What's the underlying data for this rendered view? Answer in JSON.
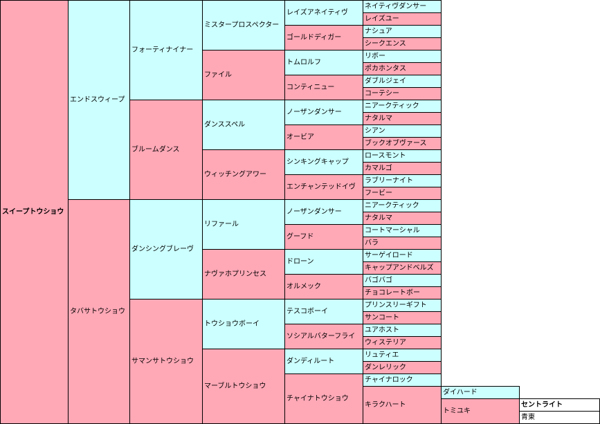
{
  "pedigree": {
    "g1": [
      "スイープトウショウ"
    ],
    "g2": [
      "エンドスウィープ",
      "タバサトウショウ"
    ],
    "g3": [
      "フォーティナイナー",
      "ブルームダンス",
      "ダンシングブレーヴ",
      "サマンサトウショウ"
    ],
    "g4": [
      "ミスタープロスペクター",
      "ファイル",
      "ダンススペル",
      "ウィッチングアワー",
      "リファール",
      "ナヴァホプリンセス",
      "トウショウボーイ",
      "マーブルトウショウ"
    ],
    "g5": [
      "レイズアネイティヴ",
      "ゴールドディガー",
      "トムロルフ",
      "コンティニュー",
      "ノーザンダンサー",
      "オービア",
      "シンキングキャップ",
      "エンチャンテッドイヴ",
      "ノーザンダンサー",
      "グーフド",
      "ドローン",
      "オルメック",
      "テスコボーイ",
      "ソシアルバターフライ",
      "ダンディルート",
      "チャイナトウショウ"
    ],
    "g6": [
      "ネイティヴダンサー",
      "レイズユー",
      "ナシュア",
      "シークエンス",
      "リボー",
      "ポカホンタス",
      "ダブルジェイ",
      "コーテシー",
      "ニアークティック",
      "ナタルマ",
      "シアン",
      "ブックオブヴァース",
      "ロースモント",
      "カマルゴ",
      "ラブリーナイト",
      "フービー",
      "ニアークティック",
      "ナタルマ",
      "コートマーシャル",
      "バラ",
      "サーゲイロード",
      "キャップアンドベルズ",
      "バゴバゴ",
      "チョコレートボー",
      "プリンスリーギフト",
      "サンコート",
      "ユアホスト",
      "ウィステリア",
      "リュティエ",
      "ダンレリック",
      "チャイナロック",
      "キラクハート"
    ],
    "g7": [
      "ダイハード",
      "トミユキ"
    ],
    "g8": [
      "セントライト",
      "青東"
    ]
  }
}
